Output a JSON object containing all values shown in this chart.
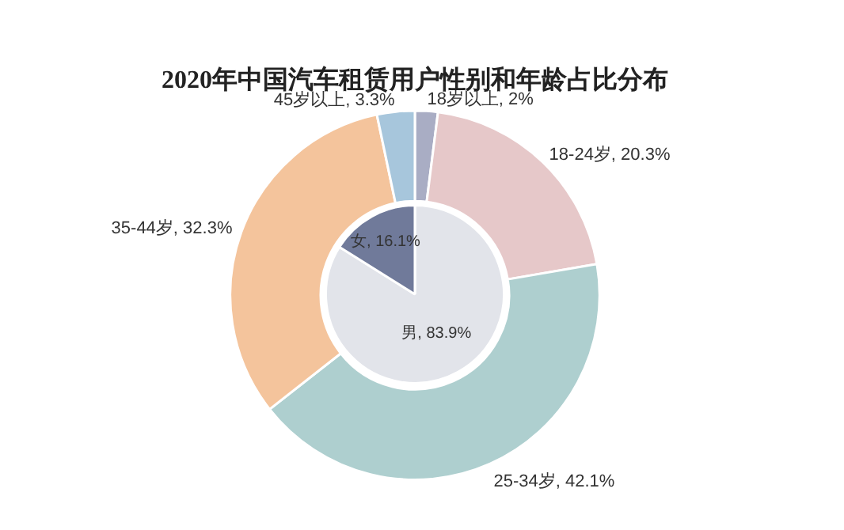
{
  "chart_data": [
    {
      "type": "donut",
      "title": "2020年中国汽车租赁用户性别和年龄占比分布",
      "categories": [
        "18岁以上",
        "18-24岁",
        "25-34岁",
        "35-44岁",
        "45岁以上"
      ],
      "values": [
        2,
        20.3,
        42.1,
        32.3,
        3.3
      ],
      "value_labels": [
        "2%",
        "20.3%",
        "42.1%",
        "32.3%",
        "3.3%"
      ],
      "colors": [
        "#a9adc4",
        "#e6c8c9",
        "#aecfcf",
        "#f4c49c",
        "#a7c6dc"
      ]
    },
    {
      "type": "pie",
      "categories": [
        "男",
        "女"
      ],
      "values": [
        83.9,
        16.1
      ],
      "value_labels": [
        "83.9%",
        "16.1%"
      ],
      "colors": [
        "#e2e4ea",
        "#707a9a"
      ]
    }
  ]
}
